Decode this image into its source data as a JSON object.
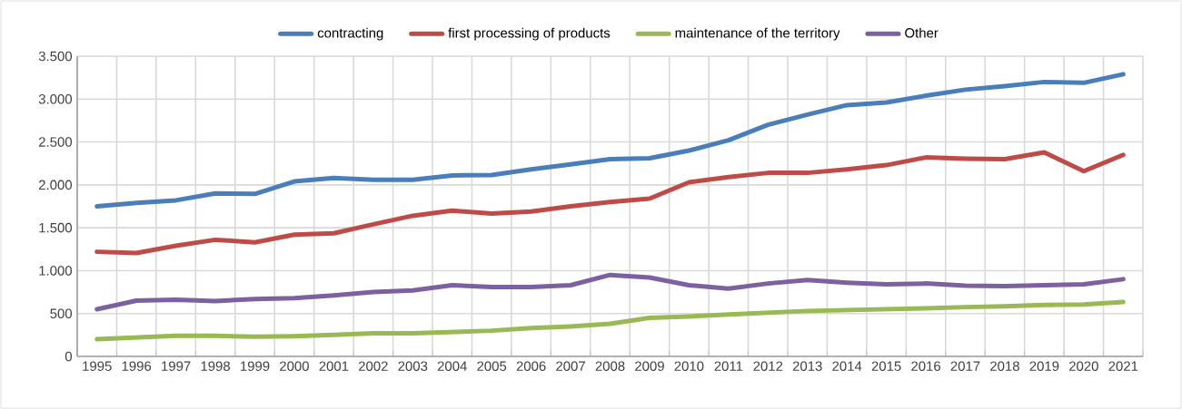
{
  "chart_data": {
    "type": "line",
    "categories": [
      "1995",
      "1996",
      "1997",
      "1998",
      "1999",
      "2000",
      "2001",
      "2002",
      "2003",
      "2004",
      "2005",
      "2006",
      "2007",
      "2008",
      "2009",
      "2010",
      "2011",
      "2012",
      "2013",
      "2014",
      "2015",
      "2016",
      "2017",
      "2018",
      "2019",
      "2020",
      "2021"
    ],
    "series": [
      {
        "name": "contracting",
        "color": "#4a7ebb",
        "values": [
          1750,
          1790,
          1820,
          1900,
          1895,
          2040,
          2080,
          2060,
          2060,
          2110,
          2115,
          2180,
          2240,
          2300,
          2310,
          2400,
          2520,
          2700,
          2820,
          2930,
          2960,
          3040,
          3110,
          3150,
          3200,
          3190,
          3290
        ]
      },
      {
        "name": "first processing of products",
        "color": "#be4b48",
        "values": [
          1220,
          1205,
          1290,
          1360,
          1330,
          1420,
          1435,
          1540,
          1640,
          1700,
          1665,
          1690,
          1750,
          1800,
          1840,
          2030,
          2090,
          2140,
          2140,
          2180,
          2230,
          2320,
          2305,
          2300,
          2380,
          2160,
          2350
        ]
      },
      {
        "name": "maintenance of the territory",
        "color": "#98b954",
        "values": [
          200,
          220,
          240,
          240,
          230,
          235,
          250,
          270,
          270,
          285,
          300,
          330,
          350,
          380,
          450,
          465,
          490,
          510,
          530,
          540,
          550,
          560,
          575,
          585,
          600,
          605,
          635
        ]
      },
      {
        "name": "Other",
        "color": "#7d60a0",
        "values": [
          550,
          650,
          660,
          645,
          670,
          680,
          710,
          750,
          770,
          830,
          810,
          810,
          830,
          950,
          920,
          830,
          790,
          850,
          890,
          860,
          840,
          850,
          825,
          820,
          830,
          840,
          900
        ]
      }
    ],
    "ylim": [
      0,
      3500
    ],
    "yticks": [
      0,
      500,
      {
        "value": 1000,
        "label": "1.000"
      },
      {
        "value": 1500,
        "label": "1.500"
      },
      {
        "value": 2000,
        "label": "2.000"
      },
      {
        "value": 2500,
        "label": "2.500"
      },
      {
        "value": 3000,
        "label": "3.000"
      },
      {
        "value": 3500,
        "label": "3.500"
      }
    ],
    "grid": true,
    "legend": "top"
  }
}
